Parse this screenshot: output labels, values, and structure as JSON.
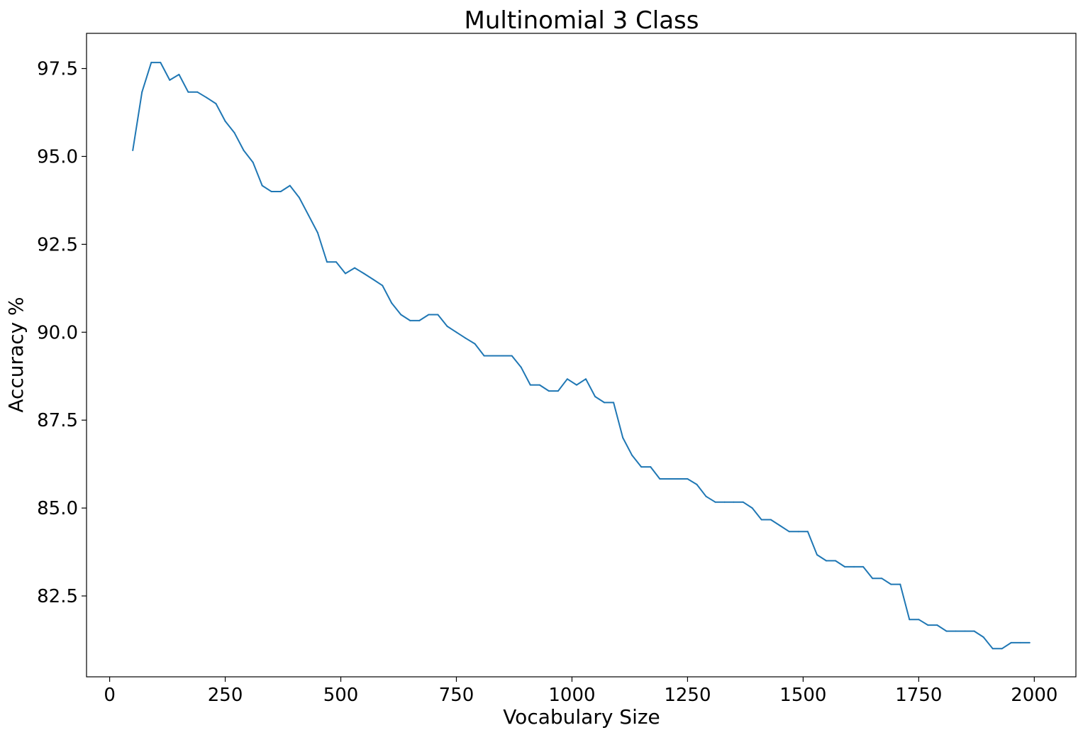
{
  "chart_data": {
    "type": "line",
    "title": "Multinomial 3 Class",
    "xlabel": "Vocabulary Size",
    "ylabel": "Accuracy %",
    "xlim": [
      -50,
      2090
    ],
    "ylim": [
      80.2,
      98.5
    ],
    "xticks": [
      0,
      250,
      500,
      750,
      1000,
      1250,
      1500,
      1750,
      2000
    ],
    "yticks": [
      82.5,
      85.0,
      87.5,
      90.0,
      92.5,
      95.0,
      97.5
    ],
    "xtick_labels": [
      "0",
      "250",
      "500",
      "750",
      "1000",
      "1250",
      "1500",
      "1750",
      "2000"
    ],
    "ytick_labels": [
      "82.5",
      "85.0",
      "87.5",
      "90.0",
      "92.5",
      "95.0",
      "97.5"
    ],
    "grid": false,
    "color": "#1f77b4",
    "series": [
      {
        "x": [
          50,
          70,
          90,
          110,
          130,
          150,
          170,
          190,
          210,
          230,
          250,
          270,
          290,
          310,
          330,
          350,
          370,
          390,
          410,
          430,
          450,
          470,
          490,
          510,
          530,
          550,
          570,
          590,
          610,
          630,
          650,
          670,
          690,
          710,
          730,
          750,
          770,
          790,
          810,
          830,
          850,
          870,
          890,
          910,
          930,
          950,
          970,
          990,
          1010,
          1030,
          1050,
          1070,
          1090,
          1110,
          1130,
          1150,
          1170,
          1190,
          1210,
          1230,
          1250,
          1270,
          1290,
          1310,
          1330,
          1350,
          1370,
          1390,
          1410,
          1430,
          1450,
          1470,
          1490,
          1510,
          1530,
          1550,
          1570,
          1590,
          1610,
          1630,
          1650,
          1670,
          1690,
          1710,
          1730,
          1750,
          1770,
          1790,
          1810,
          1830,
          1850,
          1870,
          1890,
          1910,
          1930,
          1950,
          1970,
          1990
        ],
        "y": [
          95.17,
          96.83,
          97.67,
          97.67,
          97.17,
          97.33,
          96.83,
          96.83,
          96.67,
          96.5,
          96.0,
          95.67,
          95.17,
          94.83,
          94.17,
          94.0,
          94.0,
          94.17,
          93.83,
          93.33,
          92.83,
          92.0,
          92.0,
          91.67,
          91.83,
          91.67,
          91.5,
          91.33,
          90.83,
          90.5,
          90.33,
          90.33,
          90.5,
          90.5,
          90.17,
          90.0,
          89.83,
          89.67,
          89.33,
          89.33,
          89.33,
          89.33,
          89.0,
          88.5,
          88.5,
          88.33,
          88.33,
          88.67,
          88.5,
          88.67,
          88.17,
          88.0,
          88.0,
          87.0,
          86.5,
          86.17,
          86.17,
          85.83,
          85.83,
          85.83,
          85.83,
          85.67,
          85.33,
          85.17,
          85.17,
          85.17,
          85.17,
          85.0,
          84.67,
          84.67,
          84.5,
          84.33,
          84.33,
          84.33,
          83.67,
          83.5,
          83.5,
          83.33,
          83.33,
          83.33,
          83.0,
          83.0,
          82.83,
          82.83,
          81.83,
          81.83,
          81.67,
          81.67,
          81.5,
          81.5,
          81.5,
          81.5,
          81.33,
          81.0,
          81.0,
          81.17,
          81.17,
          81.17
        ]
      }
    ]
  }
}
